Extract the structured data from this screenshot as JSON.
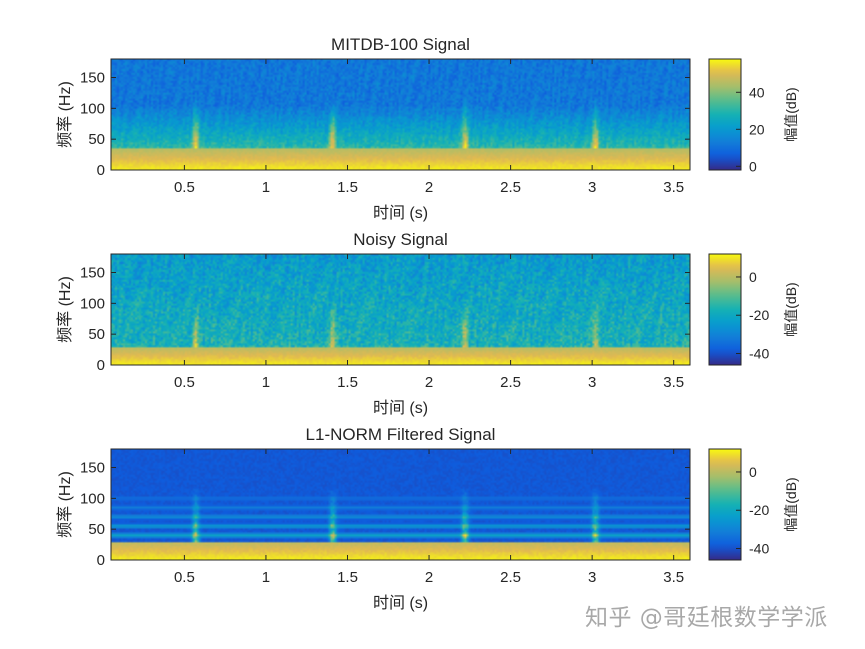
{
  "chart_data": [
    {
      "type": "heatmap",
      "title": "MITDB-100 Signal",
      "xlabel": "时间 (s)",
      "ylabel": "频率 (Hz)",
      "xlim": [
        0.05,
        3.6
      ],
      "ylim": [
        0,
        180
      ],
      "xticks": [
        0.5,
        1,
        1.5,
        2,
        2.5,
        3,
        3.5
      ],
      "xtick_labels": [
        "0.5",
        "1",
        "1.5",
        "2",
        "2.5",
        "3",
        "3.5"
      ],
      "yticks": [
        0,
        50,
        100,
        150
      ],
      "ytick_labels": [
        "0",
        "50",
        "100",
        "150"
      ],
      "colorbar": {
        "label": "幅值(dB)",
        "clim": [
          -2,
          58
        ],
        "ticks": [
          0,
          20,
          40
        ],
        "tick_labels": [
          "0",
          "20",
          "40"
        ]
      },
      "beat_times": [
        0.57,
        1.41,
        2.22,
        3.02
      ],
      "low_band_hz": 35,
      "profile": "raw",
      "grid": false
    },
    {
      "type": "heatmap",
      "title": "Noisy Signal",
      "xlabel": "时间 (s)",
      "ylabel": "频率 (Hz)",
      "xlim": [
        0.05,
        3.6
      ],
      "ylim": [
        0,
        180
      ],
      "xticks": [
        0.5,
        1,
        1.5,
        2,
        2.5,
        3,
        3.5
      ],
      "xtick_labels": [
        "0.5",
        "1",
        "1.5",
        "2",
        "2.5",
        "3",
        "3.5"
      ],
      "yticks": [
        0,
        50,
        100,
        150
      ],
      "ytick_labels": [
        "0",
        "50",
        "100",
        "150"
      ],
      "colorbar": {
        "label": "幅值(dB)",
        "clim": [
          -46,
          12
        ],
        "ticks": [
          0,
          -20,
          -40
        ],
        "tick_labels": [
          "0",
          "-20",
          "-40"
        ]
      },
      "beat_times": [
        0.57,
        1.41,
        2.22,
        3.02
      ],
      "low_band_hz": 30,
      "profile": "noisy",
      "grid": false
    },
    {
      "type": "heatmap",
      "title": "L1-NORM Filtered Signal",
      "xlabel": "时间 (s)",
      "ylabel": "频率 (Hz)",
      "xlim": [
        0.05,
        3.6
      ],
      "ylim": [
        0,
        180
      ],
      "xticks": [
        0.5,
        1,
        1.5,
        2,
        2.5,
        3,
        3.5
      ],
      "xtick_labels": [
        "0.5",
        "1",
        "1.5",
        "2",
        "2.5",
        "3",
        "3.5"
      ],
      "yticks": [
        0,
        50,
        100,
        150
      ],
      "ytick_labels": [
        "0",
        "50",
        "100",
        "150"
      ],
      "colorbar": {
        "label": "幅值(dB)",
        "clim": [
          -46,
          12
        ],
        "ticks": [
          0,
          -20,
          -40
        ],
        "tick_labels": [
          "0",
          "-20",
          "-40"
        ]
      },
      "beat_times": [
        0.57,
        1.41,
        2.22,
        3.02
      ],
      "low_band_hz": 30,
      "harmonic_bands_hz": [
        40,
        55,
        70,
        85,
        100
      ],
      "profile": "filtered",
      "grid": false
    }
  ],
  "watermark": "知乎 @哥廷根数学学派"
}
